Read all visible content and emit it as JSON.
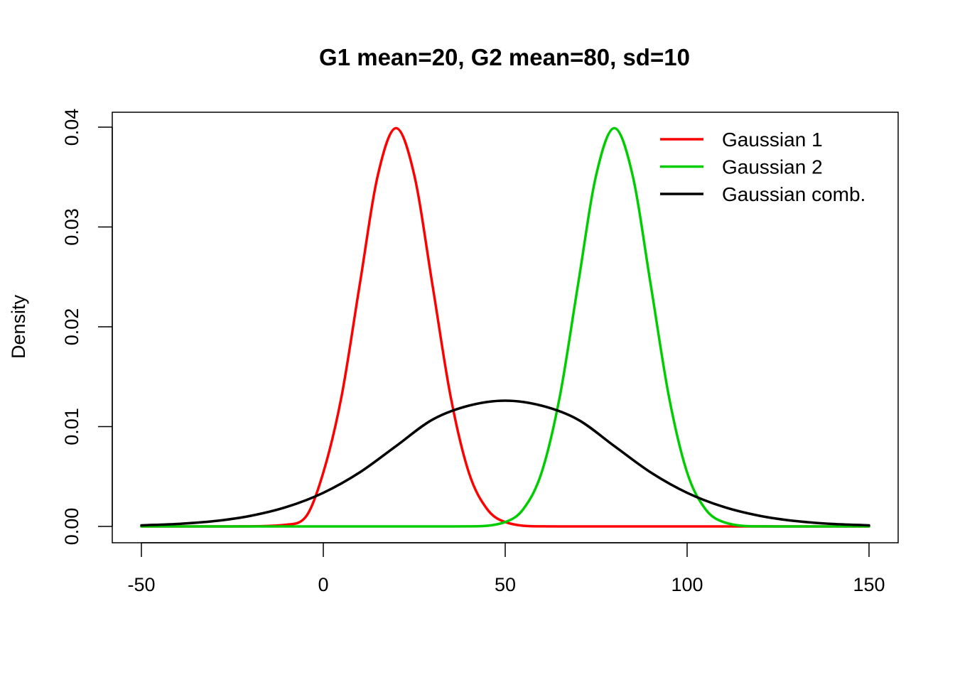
{
  "chart_data": {
    "type": "line",
    "title": "G1 mean=20, G2 mean=80, sd=10",
    "xlabel": "",
    "ylabel": "Density",
    "xlim": [
      -50,
      150
    ],
    "ylim": [
      0,
      0.04
    ],
    "x_ticks": [
      -50,
      0,
      50,
      100,
      150
    ],
    "x_tick_labels": [
      "-50",
      "0",
      "50",
      "100",
      "150"
    ],
    "y_ticks": [
      0,
      0.01,
      0.02,
      0.03,
      0.04
    ],
    "y_tick_labels": [
      "0.00",
      "0.01",
      "0.02",
      "0.03",
      "0.04"
    ],
    "grid": false,
    "legend_position": "top-right",
    "series": [
      {
        "name": "Gaussian 1",
        "color": "#ff0000",
        "x": [
          -50,
          -30,
          -20,
          -10,
          -5,
          0,
          5,
          10,
          15,
          20,
          25,
          30,
          35,
          40,
          45,
          50,
          60,
          70,
          150
        ],
        "y": [
          0,
          0,
          1e-05,
          0.00018,
          0.00088,
          0.0054,
          0.013,
          0.0242,
          0.0352,
          0.0399,
          0.0352,
          0.0242,
          0.013,
          0.0054,
          0.00175,
          0.00044,
          1e-05,
          0,
          0
        ]
      },
      {
        "name": "Gaussian 2",
        "color": "#00cd00",
        "x": [
          -50,
          30,
          40,
          50,
          55,
          60,
          65,
          70,
          75,
          80,
          85,
          90,
          95,
          100,
          105,
          110,
          120,
          130,
          150
        ],
        "y": [
          0,
          0,
          1e-05,
          0.00044,
          0.00175,
          0.0054,
          0.013,
          0.0242,
          0.0352,
          0.0399,
          0.0352,
          0.0242,
          0.013,
          0.0054,
          0.00175,
          0.00044,
          1e-05,
          0,
          0
        ]
      },
      {
        "name": "Gaussian comb.",
        "color": "#000000",
        "x": [
          -50,
          -40,
          -30,
          -20,
          -10,
          0,
          10,
          20,
          30,
          40,
          50,
          60,
          70,
          80,
          90,
          100,
          110,
          120,
          130,
          140,
          150
        ],
        "y": [
          0.00011,
          0.00025,
          0.00053,
          0.00106,
          0.00196,
          0.00337,
          0.00541,
          0.00805,
          0.0107,
          0.0121,
          0.0126,
          0.0121,
          0.0107,
          0.00805,
          0.00541,
          0.00337,
          0.00196,
          0.00106,
          0.00053,
          0.00025,
          0.00011
        ]
      }
    ]
  }
}
